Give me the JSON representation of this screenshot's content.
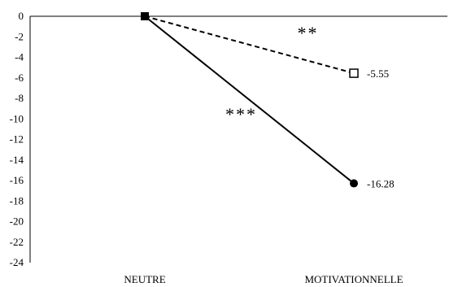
{
  "chart_data": {
    "type": "line",
    "title": "",
    "xlabel": "",
    "ylabel": "",
    "categories": [
      "NEUTRE",
      "MOTIVATIONNELLE"
    ],
    "ylim": [
      -24,
      0
    ],
    "y_ticks": [
      "0",
      "-2",
      "-4",
      "-6",
      "-8",
      "-10",
      "-12",
      "-14",
      "-16",
      "-18",
      "-20",
      "-22",
      "-24"
    ],
    "grid": false,
    "legend": "none",
    "series": [
      {
        "style": "dashed",
        "color": "#000000",
        "marker_end": "open-square",
        "values": [
          0,
          -5.55
        ],
        "end_label": "-5.55",
        "significance": "**"
      },
      {
        "style": "solid",
        "color": "#000000",
        "marker_end": "filled-circle",
        "values": [
          0,
          -16.28
        ],
        "end_label": "-16.28",
        "significance": "***"
      }
    ]
  }
}
